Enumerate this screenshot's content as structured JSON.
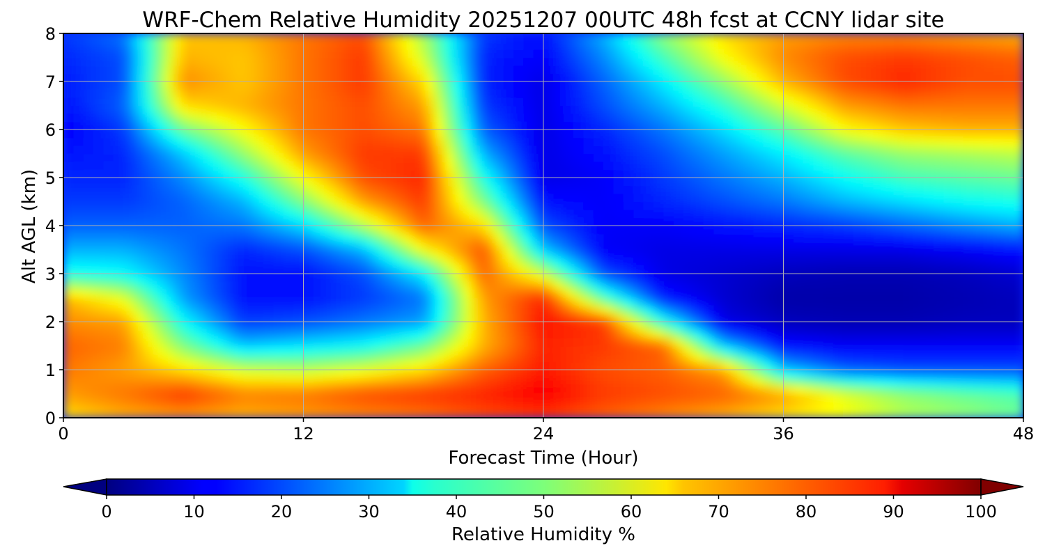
{
  "chart_data": {
    "type": "heatmap",
    "title": "WRF-Chem Relative Humidity 20251207 00UTC 48h fcst at CCNY lidar site",
    "xlabel": "Forecast Time (Hour)",
    "ylabel": "Alt AGL (km)",
    "xlim": [
      0,
      48
    ],
    "ylim": [
      0,
      8
    ],
    "x_ticks": [
      "0",
      "12",
      "24",
      "36",
      "48"
    ],
    "y_ticks": [
      "0",
      "1",
      "2",
      "3",
      "4",
      "5",
      "6",
      "7",
      "8"
    ],
    "grid": true,
    "x": [
      0,
      3,
      6,
      9,
      12,
      15,
      18,
      21,
      24,
      27,
      30,
      33,
      36,
      39,
      42,
      45,
      48
    ],
    "y": [
      0,
      0.5,
      1,
      1.5,
      2,
      2.5,
      3,
      3.5,
      4,
      4.5,
      5,
      5.5,
      6,
      6.5,
      7,
      7.5,
      8
    ],
    "z": [
      [
        65,
        70,
        72,
        70,
        72,
        74,
        76,
        80,
        82,
        78,
        74,
        70,
        65,
        62,
        55,
        52,
        48
      ],
      [
        72,
        76,
        82,
        75,
        76,
        80,
        82,
        84,
        88,
        82,
        80,
        78,
        72,
        60,
        52,
        48,
        45
      ],
      [
        76,
        72,
        66,
        58,
        56,
        60,
        66,
        78,
        85,
        80,
        78,
        72,
        32,
        22,
        20,
        20,
        20
      ],
      [
        78,
        75,
        50,
        32,
        35,
        38,
        48,
        70,
        84,
        82,
        78,
        32,
        14,
        12,
        12,
        12,
        12
      ],
      [
        74,
        72,
        38,
        18,
        20,
        24,
        28,
        70,
        86,
        82,
        40,
        10,
        6,
        5,
        5,
        6,
        6
      ],
      [
        70,
        60,
        28,
        14,
        14,
        18,
        24,
        72,
        84,
        45,
        15,
        8,
        4,
        4,
        4,
        5,
        6
      ],
      [
        40,
        38,
        26,
        14,
        14,
        20,
        36,
        78,
        58,
        20,
        10,
        8,
        6,
        5,
        5,
        6,
        8
      ],
      [
        30,
        30,
        24,
        16,
        20,
        30,
        62,
        80,
        32,
        12,
        10,
        10,
        10,
        10,
        10,
        12,
        14
      ],
      [
        22,
        22,
        22,
        24,
        34,
        55,
        78,
        66,
        20,
        12,
        12,
        14,
        16,
        18,
        22,
        26,
        30
      ],
      [
        18,
        18,
        22,
        30,
        50,
        72,
        82,
        50,
        14,
        12,
        16,
        20,
        24,
        30,
        34,
        38,
        40
      ],
      [
        16,
        16,
        26,
        40,
        62,
        80,
        84,
        40,
        10,
        12,
        18,
        24,
        30,
        38,
        44,
        46,
        48
      ],
      [
        14,
        16,
        32,
        52,
        72,
        82,
        82,
        30,
        10,
        14,
        20,
        28,
        36,
        46,
        52,
        54,
        56
      ],
      [
        12,
        18,
        48,
        62,
        76,
        80,
        76,
        22,
        10,
        16,
        24,
        34,
        46,
        62,
        68,
        70,
        70
      ],
      [
        14,
        22,
        66,
        70,
        76,
        80,
        72,
        18,
        10,
        20,
        30,
        42,
        58,
        72,
        76,
        76,
        76
      ],
      [
        15,
        20,
        74,
        68,
        76,
        82,
        66,
        16,
        10,
        22,
        36,
        52,
        70,
        80,
        84,
        80,
        80
      ],
      [
        16,
        20,
        70,
        68,
        76,
        82,
        58,
        16,
        12,
        26,
        44,
        62,
        74,
        80,
        82,
        80,
        78
      ],
      [
        18,
        24,
        68,
        70,
        76,
        80,
        54,
        18,
        14,
        30,
        52,
        66,
        72,
        74,
        74,
        72,
        70
      ]
    ],
    "colorbar": {
      "label": "Relative Humidity %",
      "ticks": [
        "0",
        "10",
        "20",
        "30",
        "40",
        "50",
        "60",
        "70",
        "80",
        "90",
        "100"
      ],
      "range": [
        0,
        100
      ],
      "extend": "both",
      "colormap": "jet",
      "placement": "bottom"
    }
  }
}
